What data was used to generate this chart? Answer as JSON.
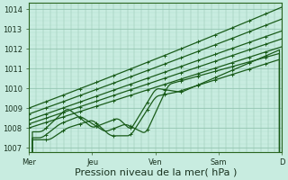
{
  "background_color": "#c8ece0",
  "plot_bg_color": "#c8ece0",
  "grid_major_color": "#8bbfaa",
  "grid_minor_color": "#a8d8c4",
  "line_color": "#1a5c1a",
  "xlabel": "Pression niveau de la mer( hPa )",
  "xlabel_fontsize": 8,
  "yticks": [
    1007,
    1008,
    1009,
    1010,
    1011,
    1012,
    1013,
    1014
  ],
  "ylim": [
    1006.8,
    1014.3
  ],
  "xlim": [
    0,
    1.0
  ],
  "xtick_labels": [
    "Mer",
    "Jeu",
    "Ven",
    "Sam",
    "D"
  ],
  "xtick_positions": [
    0.0,
    0.25,
    0.5,
    0.75,
    1.0
  ],
  "tick_fontsize": 6
}
